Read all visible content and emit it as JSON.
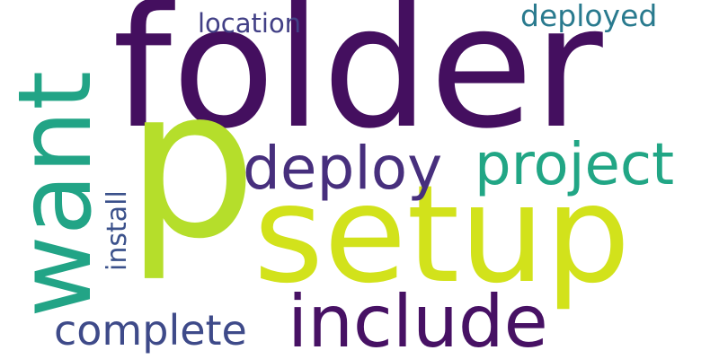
{
  "words": [
    {
      "text": "folder",
      "color": "#440f5f",
      "orientation": "horizontal"
    },
    {
      "text": "p",
      "color": "#b5de2b",
      "orientation": "horizontal"
    },
    {
      "text": "setup",
      "color": "#d2e21b",
      "orientation": "horizontal"
    },
    {
      "text": "want",
      "color": "#22a486",
      "orientation": "vertical"
    },
    {
      "text": "include",
      "color": "#471164",
      "orientation": "horizontal"
    },
    {
      "text": "deploy",
      "color": "#472f7d",
      "orientation": "horizontal"
    },
    {
      "text": "project",
      "color": "#21a685",
      "orientation": "horizontal"
    },
    {
      "text": "complete",
      "color": "#3e4a89",
      "orientation": "horizontal"
    },
    {
      "text": "install",
      "color": "#3b518b",
      "orientation": "vertical"
    },
    {
      "text": "location",
      "color": "#424086",
      "orientation": "horizontal"
    },
    {
      "text": "deployed",
      "color": "#297a8e",
      "orientation": "horizontal"
    }
  ]
}
